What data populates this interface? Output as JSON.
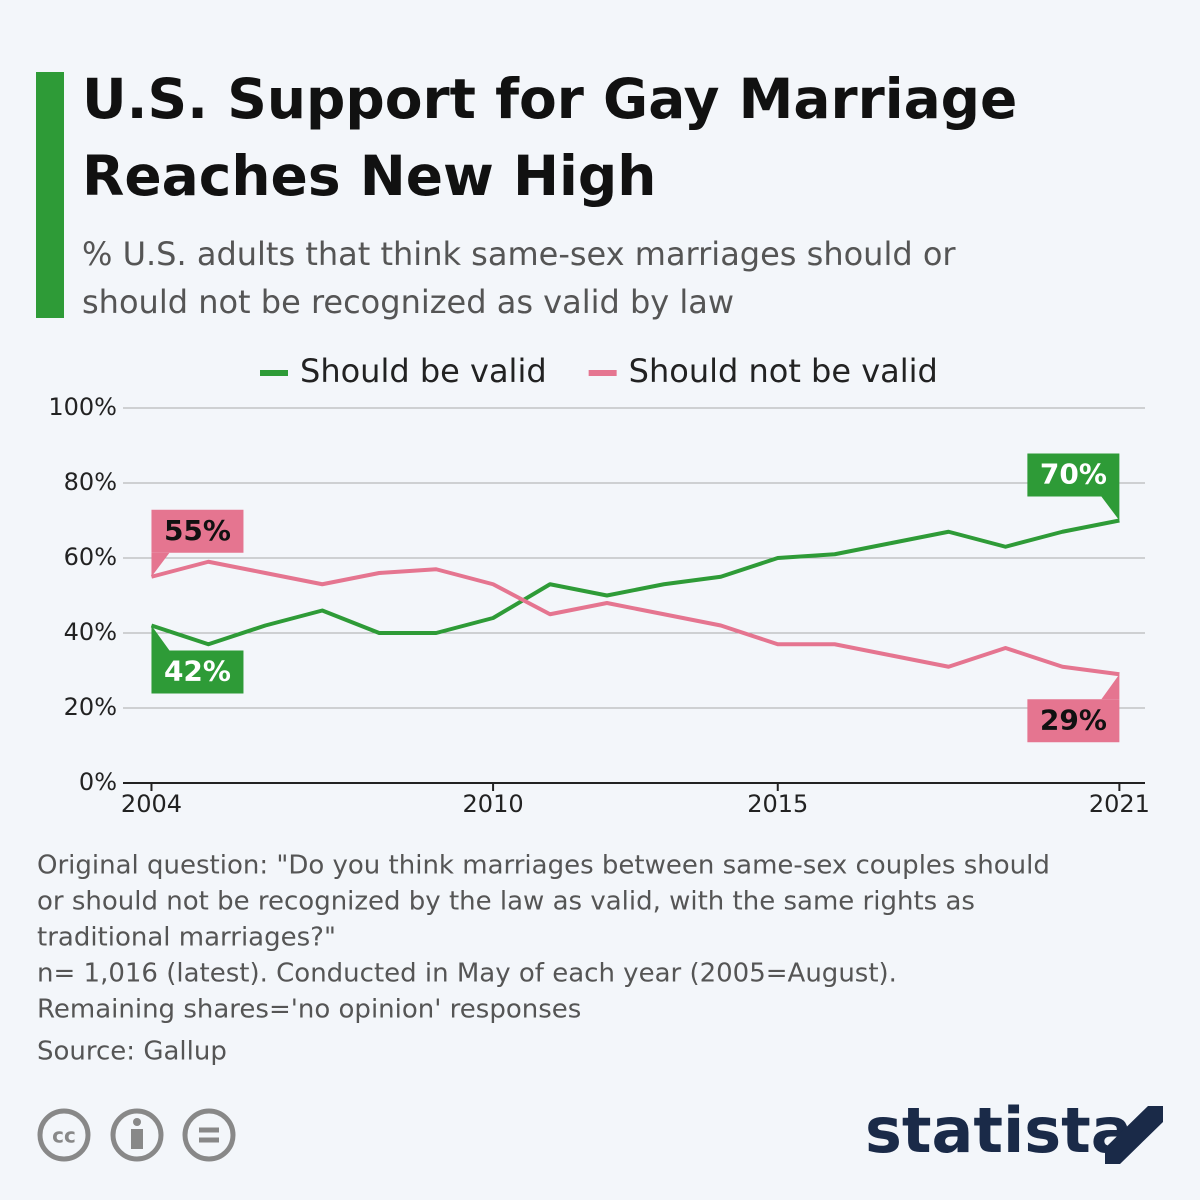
{
  "chart_data": {
    "type": "line",
    "title": [
      "U.S. Support for Gay Marriage",
      "Reaches New High"
    ],
    "subtitle": [
      "% U.S. adults that think same-sex marriages should or",
      "should not be recognized as valid by law"
    ],
    "x": [
      2004,
      2005,
      2006,
      2007,
      2008,
      2009,
      2010,
      2011,
      2012,
      2013,
      2014,
      2015,
      2016,
      2017,
      2018,
      2019,
      2020,
      2021
    ],
    "series": [
      {
        "name": "Should be valid",
        "color": "#2e9b37",
        "values": [
          42,
          37,
          42,
          46,
          40,
          40,
          44,
          53,
          50,
          53,
          55,
          60,
          61,
          64,
          67,
          63,
          67,
          70
        ],
        "value_labels": [
          "42%",
          null,
          null,
          null,
          null,
          null,
          null,
          null,
          null,
          null,
          null,
          null,
          null,
          null,
          null,
          null,
          null,
          "70%"
        ]
      },
      {
        "name": "Should not be valid",
        "color": "#e57590",
        "values": [
          55,
          59,
          56,
          53,
          56,
          57,
          53,
          45,
          48,
          45,
          42,
          37,
          37,
          34,
          31,
          36,
          31,
          29
        ],
        "value_labels": [
          "55%",
          null,
          null,
          null,
          null,
          null,
          null,
          null,
          null,
          null,
          null,
          null,
          null,
          null,
          null,
          null,
          null,
          "29%"
        ]
      }
    ],
    "xlim": [
      2003.5,
      2021.45
    ],
    "xticks": [
      2004,
      2010,
      2015,
      2021
    ],
    "ylim": [
      0,
      100
    ],
    "yticks": [
      {
        "value": 0,
        "label": "0%"
      },
      {
        "value": 20,
        "label": "20%"
      },
      {
        "value": 40,
        "label": "40%"
      },
      {
        "value": 60,
        "label": "60%"
      },
      {
        "value": 80,
        "label": "80%"
      },
      {
        "value": 100,
        "label": "100%"
      }
    ],
    "grid": true,
    "notes": [
      "Original question: \"Do you think marriages between same-sex couples should",
      "or should not be recognized by the law as valid, with the same rights as",
      "traditional marriages?\"",
      "n= 1,016 (latest). Conducted in May of each year (2005=August).",
      "Remaining shares='no opinion' responses"
    ],
    "source": "Source: Gallup",
    "brand": "statista"
  }
}
